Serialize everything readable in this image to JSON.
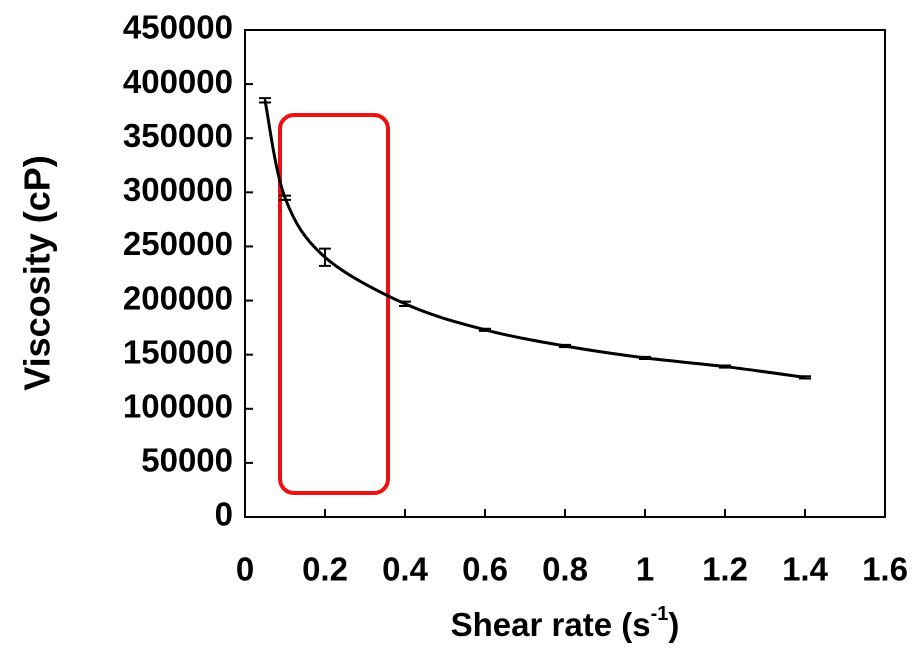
{
  "chart_data": {
    "type": "line",
    "y_label": "Viscosity (cP)",
    "x_label": {
      "text": "Shear rate (s",
      "superscript": "-1",
      "suffix": ")"
    },
    "x": [
      0.05,
      0.1,
      0.2,
      0.4,
      0.6,
      0.8,
      1.0,
      1.2,
      1.4
    ],
    "series": [
      {
        "color": "#000000",
        "values": [
          385000,
          295000,
          240000,
          197000,
          173000,
          158000,
          147000,
          139000,
          129000
        ],
        "errors": [
          2000,
          2000,
          8000,
          2000,
          1000,
          1000,
          1000,
          1000,
          1000
        ]
      }
    ],
    "xlim": [
      0,
      1.6
    ],
    "xticks": [
      0,
      0.2,
      0.4,
      0.6,
      0.8,
      1,
      1.2,
      1.4,
      1.6
    ],
    "ylim": [
      0,
      450000
    ],
    "yticks": [
      0,
      50000,
      100000,
      150000,
      200000,
      250000,
      300000,
      350000,
      400000,
      450000
    ],
    "grid": false
  }
}
